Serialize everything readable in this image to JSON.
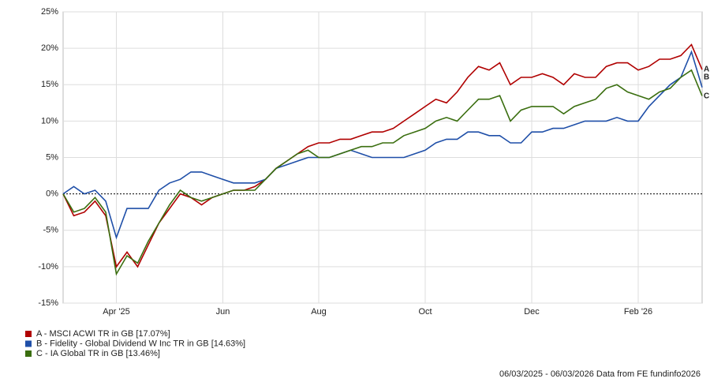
{
  "chart_data": {
    "type": "line",
    "categories": [
      null,
      null,
      null,
      null,
      null,
      "Apr '25",
      null,
      null,
      null,
      null,
      null,
      null,
      null,
      null,
      null,
      "Jun",
      null,
      null,
      null,
      null,
      null,
      null,
      null,
      null,
      "Aug",
      null,
      null,
      null,
      null,
      null,
      null,
      null,
      null,
      null,
      "Oct",
      null,
      null,
      null,
      null,
      null,
      null,
      null,
      null,
      null,
      "Dec",
      null,
      null,
      null,
      null,
      null,
      null,
      null,
      null,
      null,
      "Feb '26",
      null,
      null,
      null,
      null,
      null,
      null
    ],
    "series": [
      {
        "name": "A - MSCI ACWI TR in GB [17.07%]",
        "tag": "A",
        "color": "#b00000",
        "values": [
          0,
          -3,
          -2.5,
          -1,
          -3,
          -10,
          -8,
          -10,
          -7,
          -4,
          -2,
          0,
          -0.5,
          -1.5,
          -0.5,
          0,
          0.5,
          0.5,
          1,
          2,
          3.5,
          4.5,
          5.5,
          6.5,
          7,
          7,
          7.5,
          7.5,
          8,
          8.5,
          8.5,
          9,
          10,
          11,
          12,
          13,
          12.5,
          14,
          16,
          17.5,
          17,
          18,
          15,
          16,
          16,
          16.5,
          16,
          15,
          16.5,
          16,
          16,
          17.5,
          18,
          18,
          17,
          17.5,
          18.5,
          18.5,
          19,
          20.5,
          17.07
        ]
      },
      {
        "name": "B - Fidelity - Global Dividend W Inc TR in GB [14.63%]",
        "tag": "B",
        "color": "#1f4fa8",
        "values": [
          0,
          1,
          0,
          0.5,
          -1,
          -6,
          -2,
          -2,
          -2,
          0.5,
          1.5,
          2,
          3,
          3,
          2.5,
          2,
          1.5,
          1.5,
          1.5,
          2,
          3.5,
          4,
          4.5,
          5,
          5,
          5,
          5.5,
          6,
          5.5,
          5,
          5,
          5,
          5,
          5.5,
          6,
          7,
          7.5,
          7.5,
          8.5,
          8.5,
          8,
          8,
          7,
          7,
          8.5,
          8.5,
          9,
          9,
          9.5,
          10,
          10,
          10,
          10.5,
          10,
          10,
          12,
          13.5,
          15,
          16,
          19.5,
          14.63
        ]
      },
      {
        "name": "C - IA Global TR in GB [13.46%]",
        "tag": "C",
        "color": "#3a6e0f",
        "values": [
          0,
          -2.5,
          -2,
          -0.5,
          -2.5,
          -11,
          -8.5,
          -9.5,
          -6.5,
          -4,
          -1.5,
          0.5,
          -0.5,
          -1,
          -0.5,
          0,
          0.5,
          0.5,
          0.5,
          2,
          3.5,
          4.5,
          5.5,
          6,
          5,
          5,
          5.5,
          6,
          6.5,
          6.5,
          7,
          7,
          8,
          8.5,
          9,
          10,
          10.5,
          10,
          11.5,
          13,
          13,
          13.5,
          10,
          11.5,
          12,
          12,
          12,
          11,
          12,
          12.5,
          13,
          14.5,
          15,
          14,
          13.5,
          13,
          14,
          14.5,
          16,
          17,
          13.46
        ]
      }
    ],
    "ylim": [
      -15,
      25
    ],
    "yticks": [
      {
        "value": -15,
        "label": "-15%"
      },
      {
        "value": -10,
        "label": "-10%"
      },
      {
        "value": -5,
        "label": "-5%"
      },
      {
        "value": 0,
        "label": "0%"
      },
      {
        "value": 5,
        "label": "5%"
      },
      {
        "value": 10,
        "label": "10%"
      },
      {
        "value": 15,
        "label": "15%"
      },
      {
        "value": 20,
        "label": "20%"
      },
      {
        "value": 25,
        "label": "25%"
      }
    ],
    "grid": true,
    "footer": "06/03/2025 - 06/03/2026 Data from FE fundinfo2026"
  }
}
